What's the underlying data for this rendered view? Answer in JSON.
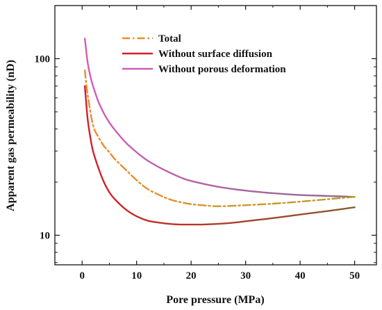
{
  "chart_data": {
    "type": "line",
    "xlabel": "Pore pressure (MPa)",
    "ylabel": "Apparent gas permeability (nD)",
    "xlim": [
      -5,
      54
    ],
    "ylim": [
      6.8,
      200
    ],
    "yscale": "log",
    "xticks": [
      0,
      10,
      20,
      30,
      40,
      50
    ],
    "xtick_labels": [
      "0",
      "10",
      "20",
      "30",
      "40",
      "50"
    ],
    "yticks": [
      10,
      100
    ],
    "ytick_labels": [
      "10",
      "100"
    ],
    "grid": false,
    "legend_position": "top-center",
    "series": [
      {
        "name": "Total",
        "color_start": "#f08a2c",
        "color_end": "#b8a020",
        "dash": "dashdot",
        "x": [
          0.5,
          1,
          2,
          3,
          4,
          5,
          6,
          8,
          10,
          12,
          14,
          16,
          18,
          20,
          22,
          25,
          28,
          30,
          35,
          40,
          45,
          50
        ],
        "y": [
          86,
          63,
          42,
          36,
          32,
          29.5,
          27,
          23.5,
          20.5,
          18.3,
          17,
          16,
          15.4,
          15.0,
          14.8,
          14.6,
          14.7,
          14.8,
          15.1,
          15.5,
          16.0,
          16.5
        ]
      },
      {
        "name": "Without surface diffusion",
        "color_start": "#d21f2a",
        "color_end": "#8b5a2b",
        "dash": "solid",
        "x": [
          0.5,
          1,
          1.5,
          2,
          3,
          4,
          5,
          6,
          8,
          10,
          12,
          14,
          16,
          18,
          20,
          22,
          25,
          28,
          30,
          35,
          40,
          45,
          50
        ],
        "y": [
          70,
          46,
          36,
          30,
          24,
          20,
          17.5,
          16,
          14,
          12.8,
          12.1,
          11.8,
          11.6,
          11.5,
          11.5,
          11.5,
          11.6,
          11.8,
          12.0,
          12.5,
          13.1,
          13.7,
          14.4
        ]
      },
      {
        "name": "Without porous deformation",
        "color_start": "#d05cbb",
        "color_end": "#8e6a8a",
        "dash": "solid",
        "x": [
          0.5,
          1,
          1.5,
          2,
          3,
          4,
          5,
          6,
          8,
          10,
          12,
          15,
          18,
          20,
          25,
          30,
          35,
          40,
          45,
          50
        ],
        "y": [
          130,
          96,
          80,
          70,
          57,
          49,
          43.5,
          39.5,
          33.5,
          29.5,
          26.5,
          23.5,
          21.3,
          20.3,
          18.8,
          17.9,
          17.3,
          16.9,
          16.7,
          16.5
        ]
      }
    ]
  }
}
